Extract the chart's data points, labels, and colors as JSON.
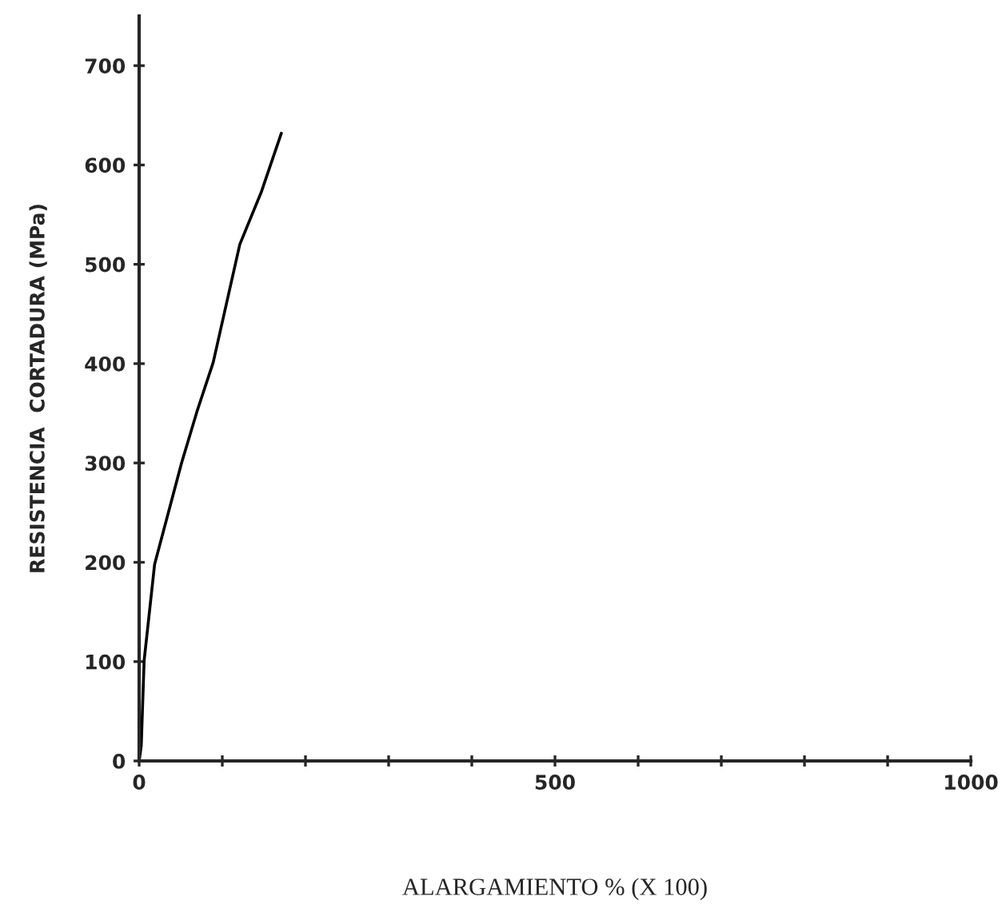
{
  "chart_data": {
    "type": "line",
    "xlabel": "ALARGAMIENTO % (X 100)",
    "ylabel": "RESISTENCIA  CORTADURA (MPa)",
    "x": [
      0,
      2.5,
      6,
      18.6,
      51,
      70,
      89,
      121,
      147,
      171
    ],
    "series": [
      {
        "color": "#000000",
        "values": [
          0,
          15,
          101,
          198,
          300,
          353,
          401,
          520,
          573,
          632
        ]
      }
    ],
    "xlim": [
      0,
      1000
    ],
    "ylim": [
      0,
      750
    ],
    "xticks": [
      0,
      {
        "value": 100,
        "label": null
      },
      {
        "value": 200,
        "label": null
      },
      {
        "value": 300,
        "label": null
      },
      {
        "value": 400,
        "label": null
      },
      500,
      {
        "value": 600,
        "label": null
      },
      {
        "value": 700,
        "label": null
      },
      {
        "value": 800,
        "label": null
      },
      {
        "value": 900,
        "label": null
      },
      1000
    ],
    "yticks": [
      0,
      100,
      200,
      300,
      400,
      500,
      600,
      700
    ],
    "grid": false,
    "legend": false,
    "marker": "none",
    "line_style": "solid"
  }
}
